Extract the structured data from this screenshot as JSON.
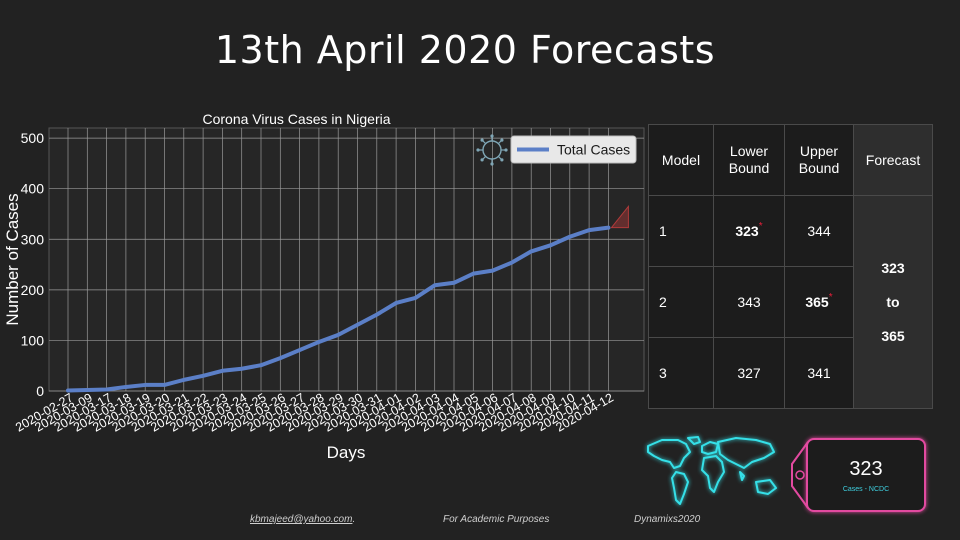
{
  "slide_title": "13th April 2020 Forecasts",
  "chart_data": {
    "type": "line",
    "title": "Corona Virus Cases in Nigeria",
    "xlabel": "Days",
    "ylabel": "Number of Cases",
    "ylim": [
      0,
      520
    ],
    "yticks": [
      0,
      100,
      200,
      300,
      400,
      500
    ],
    "grid": true,
    "legend_position": "top-right",
    "categories": [
      "2020-02-27",
      "2020-03-09",
      "2020-03-17",
      "2020-03-18",
      "2020-03-19",
      "2020-03-20",
      "2020-03-21",
      "2020-03-22",
      "2020-03-23",
      "2020-03-24",
      "2020-03-25",
      "2020-03-26",
      "2020-03-27",
      "2020-03-28",
      "2020-03-29",
      "2020-03-30",
      "2020-03-31",
      "2020-04-01",
      "2020-04-02",
      "2020-04-03",
      "2020-04-04",
      "2020-04-05",
      "2020-04-06",
      "2020-04-07",
      "2020-04-08",
      "2020-04-09",
      "2020-04-10",
      "2020-04-11",
      "2020-04-12"
    ],
    "series": [
      {
        "name": "Total Cases",
        "color": "#5b7fc7",
        "values": [
          1,
          2,
          3,
          8,
          12,
          12,
          22,
          30,
          40,
          44,
          51,
          65,
          81,
          97,
          111,
          131,
          151,
          174,
          184,
          209,
          214,
          232,
          238,
          254,
          276,
          288,
          305,
          318,
          323
        ]
      }
    ],
    "forecast_cone": {
      "color": "#b03a3a",
      "upper": 365,
      "lower": 323
    }
  },
  "table": {
    "headers": [
      "Model",
      "Lower Bound",
      "Upper Bound",
      "Forecast"
    ],
    "rows": [
      {
        "model": "1",
        "lower": "323",
        "upper": "344"
      },
      {
        "model": "2",
        "lower": "343",
        "upper": "365"
      },
      {
        "model": "3",
        "lower": "327",
        "upper": "341"
      }
    ],
    "forecast": {
      "low": "323",
      "to": "to",
      "high": "365"
    },
    "highlight_color": "#e8203a"
  },
  "tag": {
    "value": "323",
    "subtitle": "Cases - NCDC",
    "border_color": "#e24aa0",
    "subtitle_color": "#3fd0e0"
  },
  "footer": {
    "email": "kbmajeed@yahoo.com",
    "email_suffix": ".",
    "purpose": "For Academic Purposes",
    "brand": "Dynamixs2020"
  },
  "icons": {
    "chart_decoration": "virus-icon",
    "map": "world-map-icon"
  }
}
